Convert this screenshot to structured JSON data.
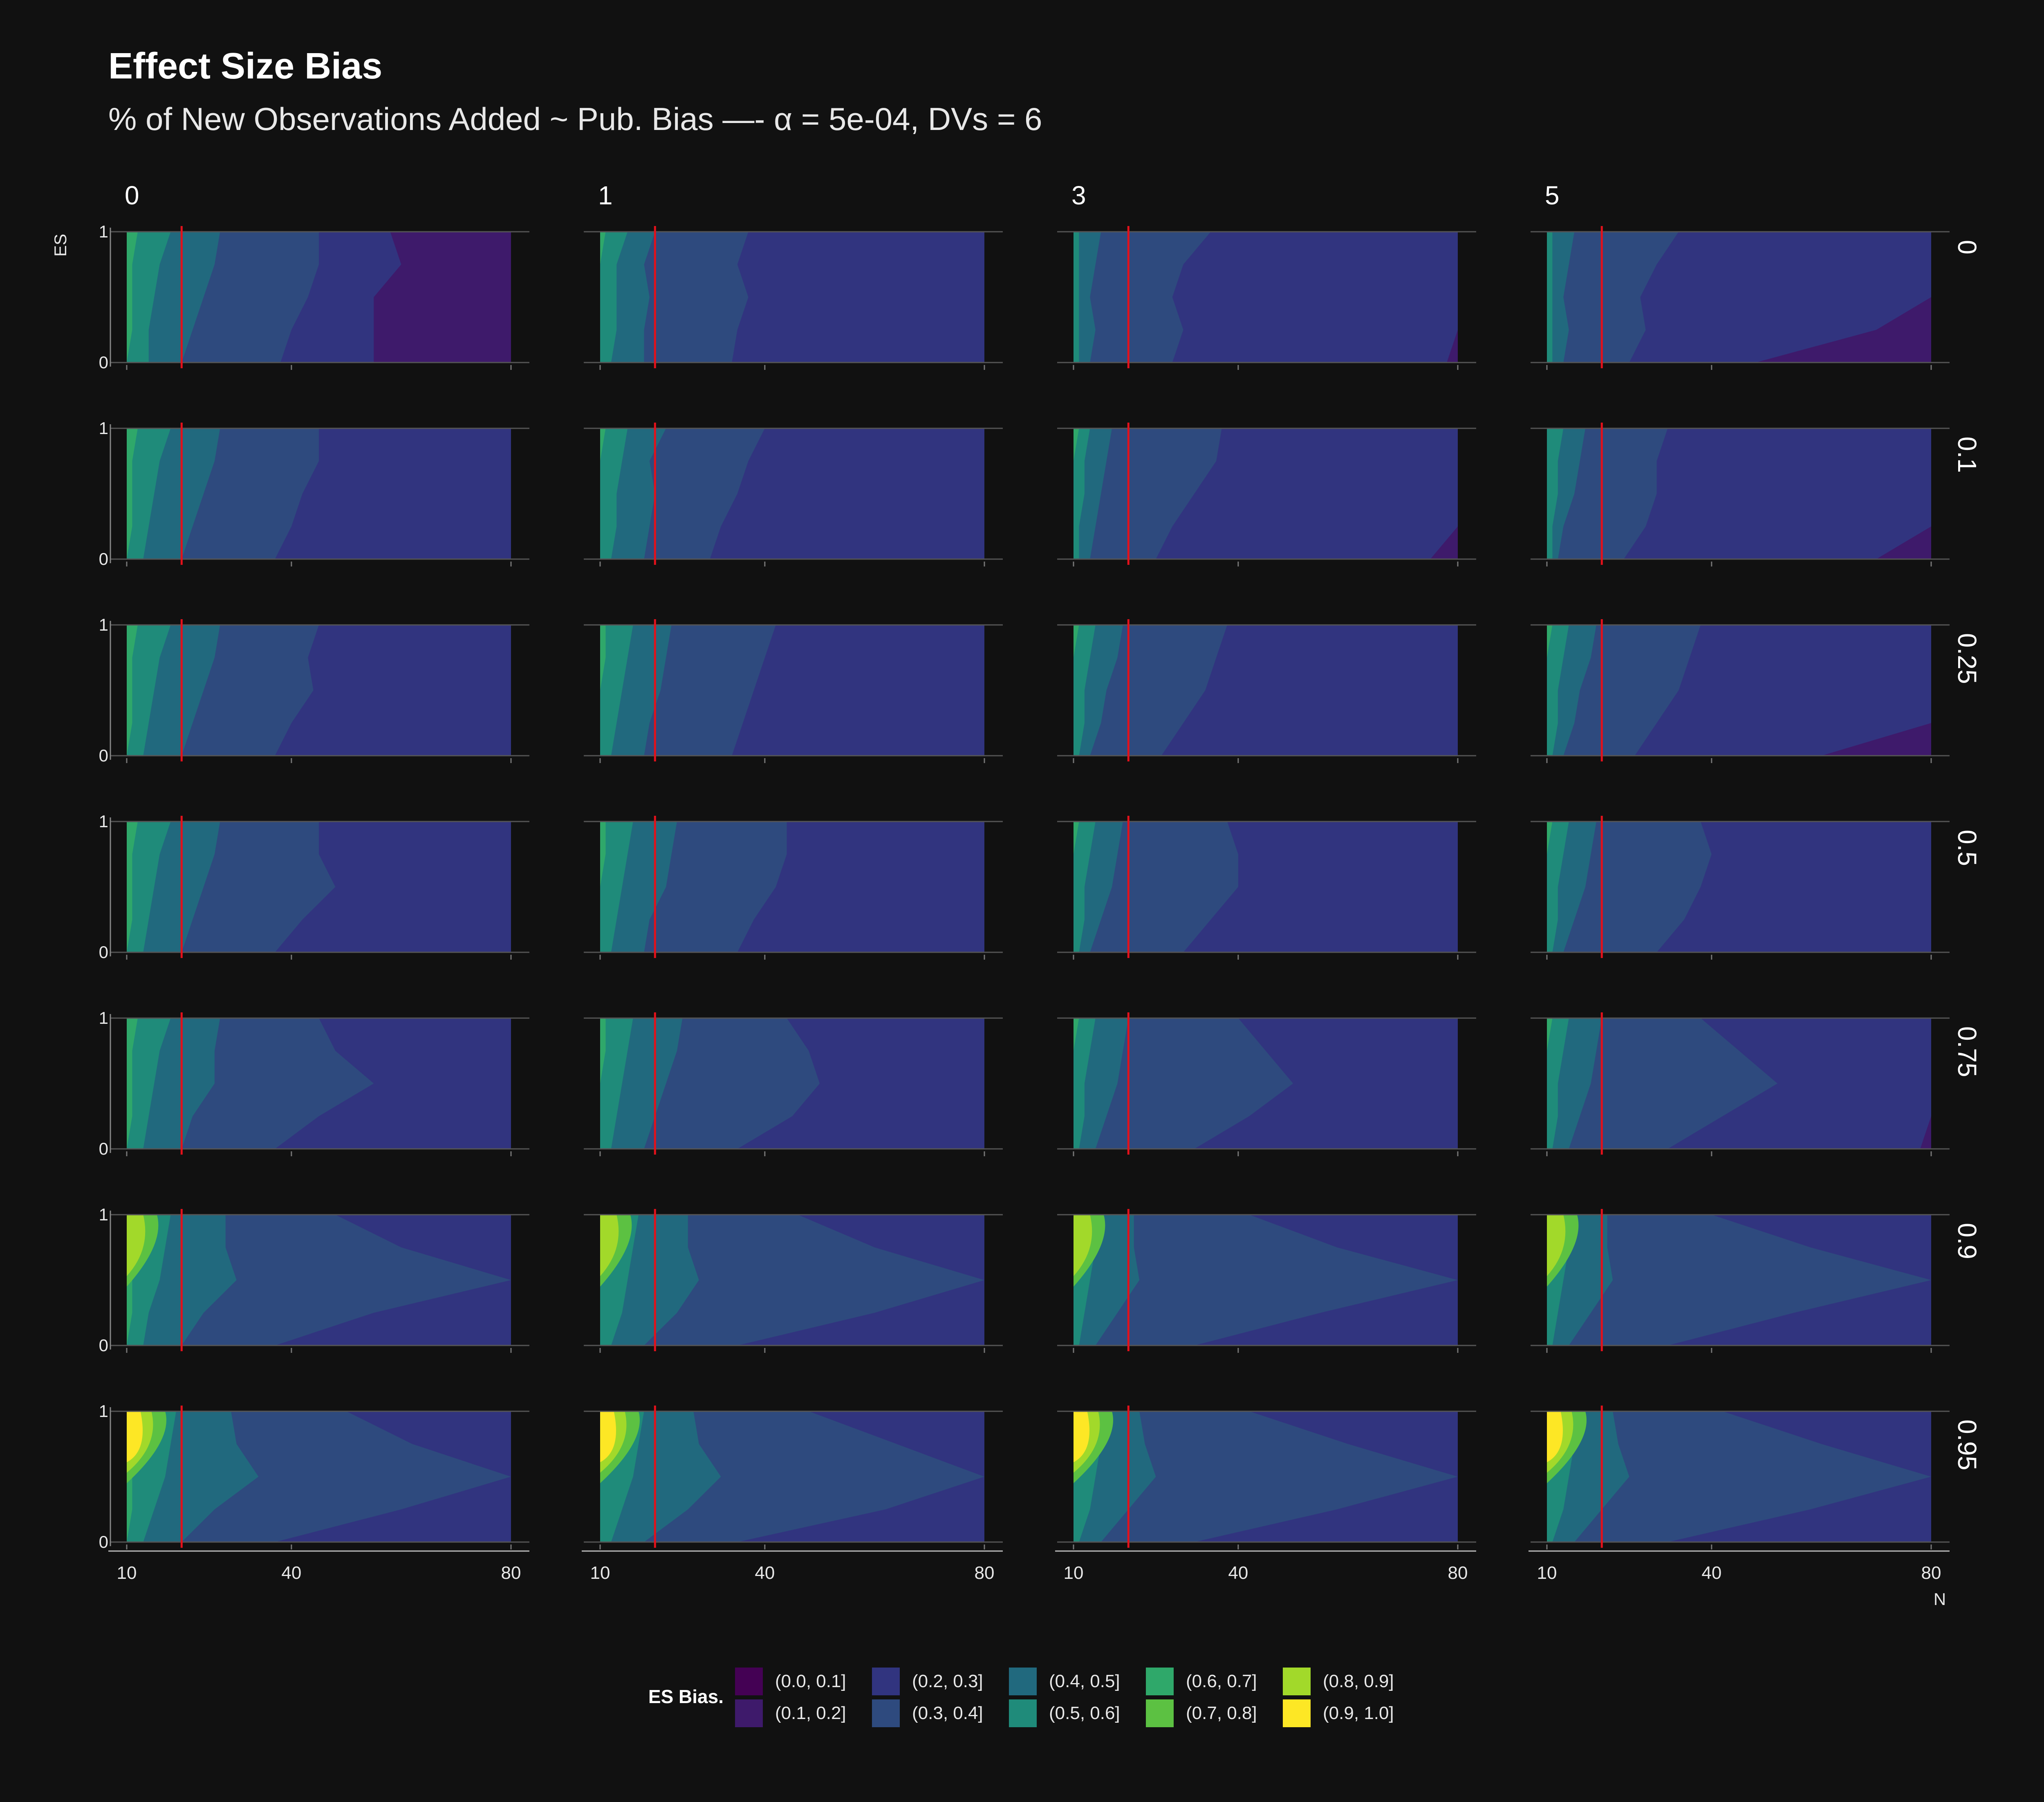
{
  "chart_data": {
    "type": "heatmap",
    "title": "Effect Size Bias",
    "subtitle": "% of New Observations Added ~ Pub. Bias —- α = 5e-04, DVs = 6",
    "xlabel": "N",
    "ylabel": "ES",
    "x_range": [
      10,
      80
    ],
    "y_range": [
      0,
      1
    ],
    "x_ticks": [
      10,
      40,
      80
    ],
    "y_ticks": [
      0,
      1
    ],
    "reference_line": {
      "x": 20,
      "color": "#e3111b"
    },
    "column_labels": [
      "0",
      "1",
      "3",
      "5"
    ],
    "row_labels": [
      "0",
      "0.1",
      "0.25",
      "0.5",
      "0.75",
      "0.9",
      "0.95"
    ],
    "palette": [
      "#440154",
      "#3e1a6b",
      "#31347f",
      "#2e4a7e",
      "#21697e",
      "#1f8b7a",
      "#2fa86a",
      "#5cc142",
      "#a2d92a",
      "#fde725"
    ],
    "legend": {
      "title": "ES Bias.",
      "items": [
        "(0.0, 0.1]",
        "(0.1, 0.2]",
        "(0.2, 0.3]",
        "(0.3, 0.4]",
        "(0.4, 0.5]",
        "(0.5, 0.6]",
        "(0.6, 0.7]",
        "(0.7, 0.8]",
        "(0.8, 0.9]",
        "(0.9, 1.0]"
      ]
    },
    "es_levels": [
      0,
      0.25,
      0.5,
      0.75,
      1
    ],
    "panels": [
      {
        "col": "0",
        "row": "0",
        "bounds": [
          [
            10,
            14,
            20,
            38,
            55
          ],
          [
            11,
            14,
            22,
            40,
            55
          ],
          [
            11,
            15,
            24,
            43,
            55
          ],
          [
            11,
            16,
            26,
            45,
            60
          ],
          [
            12,
            18,
            27,
            45,
            58
          ]
        ]
      },
      {
        "col": "1",
        "row": "0",
        "bounds": [
          [
            10,
            12,
            18,
            34,
            80
          ],
          [
            10,
            13,
            18,
            35,
            80
          ],
          [
            10,
            13,
            19,
            37,
            80
          ],
          [
            10,
            13,
            18,
            35,
            80
          ],
          [
            11,
            15,
            20,
            37,
            80
          ]
        ]
      },
      {
        "col": "3",
        "row": "0",
        "bounds": [
          [
            10,
            11,
            13,
            28,
            78
          ],
          [
            10,
            11,
            14,
            30,
            80
          ],
          [
            10,
            11,
            13,
            28,
            80
          ],
          [
            10,
            11,
            14,
            30,
            80
          ],
          [
            10,
            11,
            15,
            35,
            80
          ]
        ]
      },
      {
        "col": "5",
        "row": "0",
        "bounds": [
          [
            10,
            11,
            13,
            25,
            48
          ],
          [
            10,
            11,
            14,
            28,
            70
          ],
          [
            10,
            11,
            13,
            27,
            80
          ],
          [
            10,
            11,
            14,
            30,
            80
          ],
          [
            10,
            11,
            15,
            34,
            80
          ]
        ]
      },
      {
        "col": "0",
        "row": "0.1",
        "bounds": [
          [
            10,
            13,
            20,
            37,
            80
          ],
          [
            11,
            14,
            22,
            40,
            80
          ],
          [
            11,
            15,
            24,
            42,
            80
          ],
          [
            11,
            16,
            26,
            45,
            80
          ],
          [
            12,
            18,
            27,
            45,
            80
          ]
        ]
      },
      {
        "col": "1",
        "row": "0.1",
        "bounds": [
          [
            10,
            12,
            18,
            30,
            80
          ],
          [
            10,
            13,
            19,
            32,
            80
          ],
          [
            10,
            13,
            20,
            35,
            80
          ],
          [
            10,
            14,
            19,
            37,
            80
          ],
          [
            11,
            15,
            22,
            40,
            80
          ]
        ]
      },
      {
        "col": "3",
        "row": "0.1",
        "bounds": [
          [
            10,
            11,
            13,
            25,
            75
          ],
          [
            10,
            11,
            14,
            28,
            80
          ],
          [
            10,
            12,
            15,
            32,
            80
          ],
          [
            10,
            12,
            16,
            36,
            80
          ],
          [
            11,
            13,
            17,
            37,
            80
          ]
        ]
      },
      {
        "col": "5",
        "row": "0.1",
        "bounds": [
          [
            10,
            11,
            12,
            24,
            70
          ],
          [
            10,
            11,
            13,
            28,
            80
          ],
          [
            10,
            12,
            15,
            30,
            80
          ],
          [
            10,
            12,
            16,
            30,
            80
          ],
          [
            10,
            13,
            17,
            32,
            80
          ]
        ]
      },
      {
        "col": "0",
        "row": "0.25",
        "bounds": [
          [
            10,
            13,
            20,
            37,
            80
          ],
          [
            11,
            14,
            22,
            40,
            80
          ],
          [
            11,
            15,
            24,
            44,
            80
          ],
          [
            11,
            16,
            26,
            43,
            80
          ],
          [
            12,
            18,
            27,
            45,
            80
          ]
        ]
      },
      {
        "col": "1",
        "row": "0.25",
        "bounds": [
          [
            10,
            12,
            18,
            34,
            80
          ],
          [
            10,
            13,
            19,
            36,
            80
          ],
          [
            10,
            14,
            21,
            38,
            80
          ],
          [
            11,
            15,
            22,
            40,
            80
          ],
          [
            11,
            16,
            23,
            42,
            80
          ]
        ]
      },
      {
        "col": "3",
        "row": "0.25",
        "bounds": [
          [
            10,
            11,
            13,
            26,
            80
          ],
          [
            10,
            12,
            15,
            30,
            80
          ],
          [
            10,
            12,
            16,
            34,
            80
          ],
          [
            10,
            13,
            18,
            36,
            80
          ],
          [
            11,
            14,
            19,
            38,
            80
          ]
        ]
      },
      {
        "col": "5",
        "row": "0.25",
        "bounds": [
          [
            10,
            11,
            13,
            26,
            60
          ],
          [
            10,
            12,
            15,
            30,
            80
          ],
          [
            10,
            12,
            16,
            34,
            80
          ],
          [
            10,
            13,
            18,
            36,
            80
          ],
          [
            11,
            14,
            19,
            38,
            80
          ]
        ]
      },
      {
        "col": "0",
        "row": "0.5",
        "bounds": [
          [
            10,
            13,
            20,
            37,
            80
          ],
          [
            11,
            14,
            22,
            42,
            80
          ],
          [
            11,
            15,
            24,
            48,
            80
          ],
          [
            11,
            16,
            26,
            45,
            80
          ],
          [
            12,
            18,
            27,
            45,
            80
          ]
        ]
      },
      {
        "col": "1",
        "row": "0.5",
        "bounds": [
          [
            10,
            12,
            18,
            35,
            80
          ],
          [
            10,
            13,
            19,
            38,
            80
          ],
          [
            10,
            14,
            22,
            42,
            80
          ],
          [
            11,
            15,
            23,
            44,
            80
          ],
          [
            11,
            16,
            24,
            44,
            80
          ]
        ]
      },
      {
        "col": "3",
        "row": "0.5",
        "bounds": [
          [
            10,
            11,
            13,
            30,
            80
          ],
          [
            10,
            12,
            15,
            35,
            80
          ],
          [
            10,
            12,
            17,
            40,
            80
          ],
          [
            10,
            13,
            18,
            40,
            80
          ],
          [
            11,
            14,
            19,
            38,
            80
          ]
        ]
      },
      {
        "col": "5",
        "row": "0.5",
        "bounds": [
          [
            10,
            11,
            13,
            30,
            80
          ],
          [
            10,
            12,
            15,
            35,
            80
          ],
          [
            10,
            12,
            17,
            38,
            80
          ],
          [
            10,
            13,
            18,
            40,
            80
          ],
          [
            11,
            14,
            19,
            38,
            80
          ]
        ]
      },
      {
        "col": "0",
        "row": "0.75",
        "bounds": [
          [
            10,
            13,
            20,
            37,
            80
          ],
          [
            11,
            14,
            22,
            45,
            80
          ],
          [
            11,
            15,
            26,
            55,
            80
          ],
          [
            11,
            16,
            26,
            48,
            80
          ],
          [
            12,
            18,
            27,
            45,
            80
          ]
        ]
      },
      {
        "col": "1",
        "row": "0.75",
        "bounds": [
          [
            10,
            12,
            18,
            35,
            80
          ],
          [
            10,
            13,
            20,
            45,
            80
          ],
          [
            10,
            14,
            22,
            50,
            80
          ],
          [
            11,
            15,
            24,
            48,
            80
          ],
          [
            11,
            16,
            25,
            44,
            80
          ]
        ]
      },
      {
        "col": "3",
        "row": "0.75",
        "bounds": [
          [
            10,
            11,
            14,
            32,
            80
          ],
          [
            10,
            12,
            16,
            42,
            80
          ],
          [
            10,
            12,
            18,
            50,
            80
          ],
          [
            10,
            13,
            19,
            45,
            80
          ],
          [
            11,
            14,
            20,
            40,
            80
          ]
        ]
      },
      {
        "col": "5",
        "row": "0.75",
        "bounds": [
          [
            10,
            11,
            14,
            32,
            78
          ],
          [
            10,
            12,
            16,
            42,
            80
          ],
          [
            10,
            12,
            18,
            52,
            80
          ],
          [
            10,
            13,
            19,
            45,
            80
          ],
          [
            11,
            14,
            20,
            38,
            80
          ]
        ]
      },
      {
        "col": "0",
        "row": "0.9",
        "bounds": [
          [
            10,
            13,
            20,
            37,
            80
          ],
          [
            11,
            14,
            24,
            55,
            80
          ],
          [
            11,
            16,
            30,
            80,
            80
          ],
          [
            11,
            17,
            28,
            60,
            80
          ],
          [
            12,
            18,
            28,
            48,
            80
          ]
        ]
      },
      {
        "col": "1",
        "row": "0.9",
        "bounds": [
          [
            10,
            12,
            18,
            35,
            80
          ],
          [
            10,
            14,
            24,
            60,
            80
          ],
          [
            10,
            15,
            28,
            80,
            80
          ],
          [
            11,
            16,
            26,
            60,
            80
          ],
          [
            11,
            17,
            26,
            46,
            80
          ]
        ]
      },
      {
        "col": "3",
        "row": "0.9",
        "bounds": [
          [
            10,
            11,
            14,
            32,
            80
          ],
          [
            10,
            12,
            18,
            55,
            80
          ],
          [
            10,
            13,
            22,
            80,
            80
          ],
          [
            10,
            14,
            21,
            58,
            80
          ],
          [
            11,
            15,
            21,
            42,
            80
          ]
        ]
      },
      {
        "col": "5",
        "row": "0.9",
        "bounds": [
          [
            10,
            11,
            14,
            32,
            80
          ],
          [
            10,
            12,
            18,
            55,
            80
          ],
          [
            10,
            13,
            22,
            80,
            80
          ],
          [
            10,
            14,
            21,
            58,
            80
          ],
          [
            11,
            15,
            21,
            40,
            80
          ]
        ]
      },
      {
        "col": "0",
        "row": "0.95",
        "bounds": [
          [
            10,
            13,
            20,
            37,
            80
          ],
          [
            11,
            15,
            26,
            60,
            80
          ],
          [
            11,
            17,
            34,
            80,
            80
          ],
          [
            11,
            18,
            30,
            62,
            80
          ],
          [
            12,
            19,
            29,
            50,
            80
          ]
        ]
      },
      {
        "col": "1",
        "row": "0.95",
        "bounds": [
          [
            10,
            12,
            18,
            35,
            80
          ],
          [
            10,
            14,
            26,
            62,
            80
          ],
          [
            10,
            16,
            32,
            80,
            80
          ],
          [
            11,
            17,
            28,
            64,
            80
          ],
          [
            11,
            18,
            27,
            48,
            80
          ]
        ]
      },
      {
        "col": "3",
        "row": "0.95",
        "bounds": [
          [
            10,
            11,
            15,
            32,
            80
          ],
          [
            10,
            13,
            20,
            58,
            80
          ],
          [
            10,
            14,
            25,
            80,
            80
          ],
          [
            10,
            15,
            23,
            60,
            80
          ],
          [
            11,
            16,
            22,
            42,
            80
          ]
        ]
      },
      {
        "col": "5",
        "row": "0.95",
        "bounds": [
          [
            10,
            11,
            15,
            32,
            80
          ],
          [
            10,
            13,
            20,
            58,
            80
          ],
          [
            10,
            14,
            25,
            80,
            80
          ],
          [
            10,
            15,
            23,
            60,
            80
          ],
          [
            11,
            16,
            22,
            42,
            80
          ]
        ]
      }
    ],
    "peaks": [
      {
        "row": "0.9",
        "level": "(0.7, 0.8]"
      },
      {
        "row": "0.95",
        "level": "(0.9, 1.0]"
      }
    ]
  }
}
